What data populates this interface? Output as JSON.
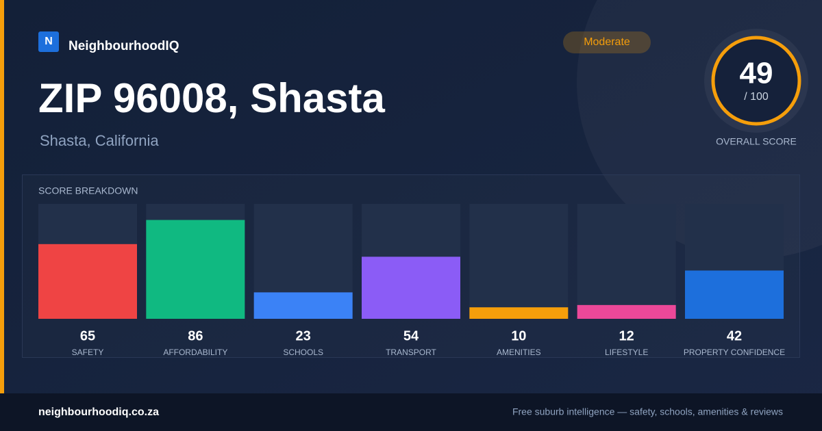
{
  "brand": {
    "logo": "N",
    "name": "NeighbourhoodIQ"
  },
  "title": "ZIP 96008, Shasta",
  "subtitle": "Shasta, California",
  "badge": "Moderate",
  "score": {
    "value": 49,
    "max_label": "/ 100",
    "label": "OVERALL SCORE"
  },
  "chart_data": {
    "type": "bar",
    "title": "SCORE BREAKDOWN",
    "categories": [
      "SAFETY",
      "AFFORDABILITY",
      "SCHOOLS",
      "TRANSPORT",
      "AMENITIES",
      "LIFESTYLE",
      "PROPERTY CONFIDENCE"
    ],
    "values": [
      65,
      86,
      23,
      54,
      10,
      12,
      42
    ],
    "colors": [
      "#ef4444",
      "#10b981",
      "#3b82f6",
      "#8b5cf6",
      "#f59e0b",
      "#ec4899",
      "#1d6fdc"
    ],
    "ylim": [
      0,
      100
    ]
  },
  "footer": {
    "site": "neighbourhoodiq.co.za",
    "tagline": "Free suburb intelligence — safety, schools, amenities & reviews"
  }
}
